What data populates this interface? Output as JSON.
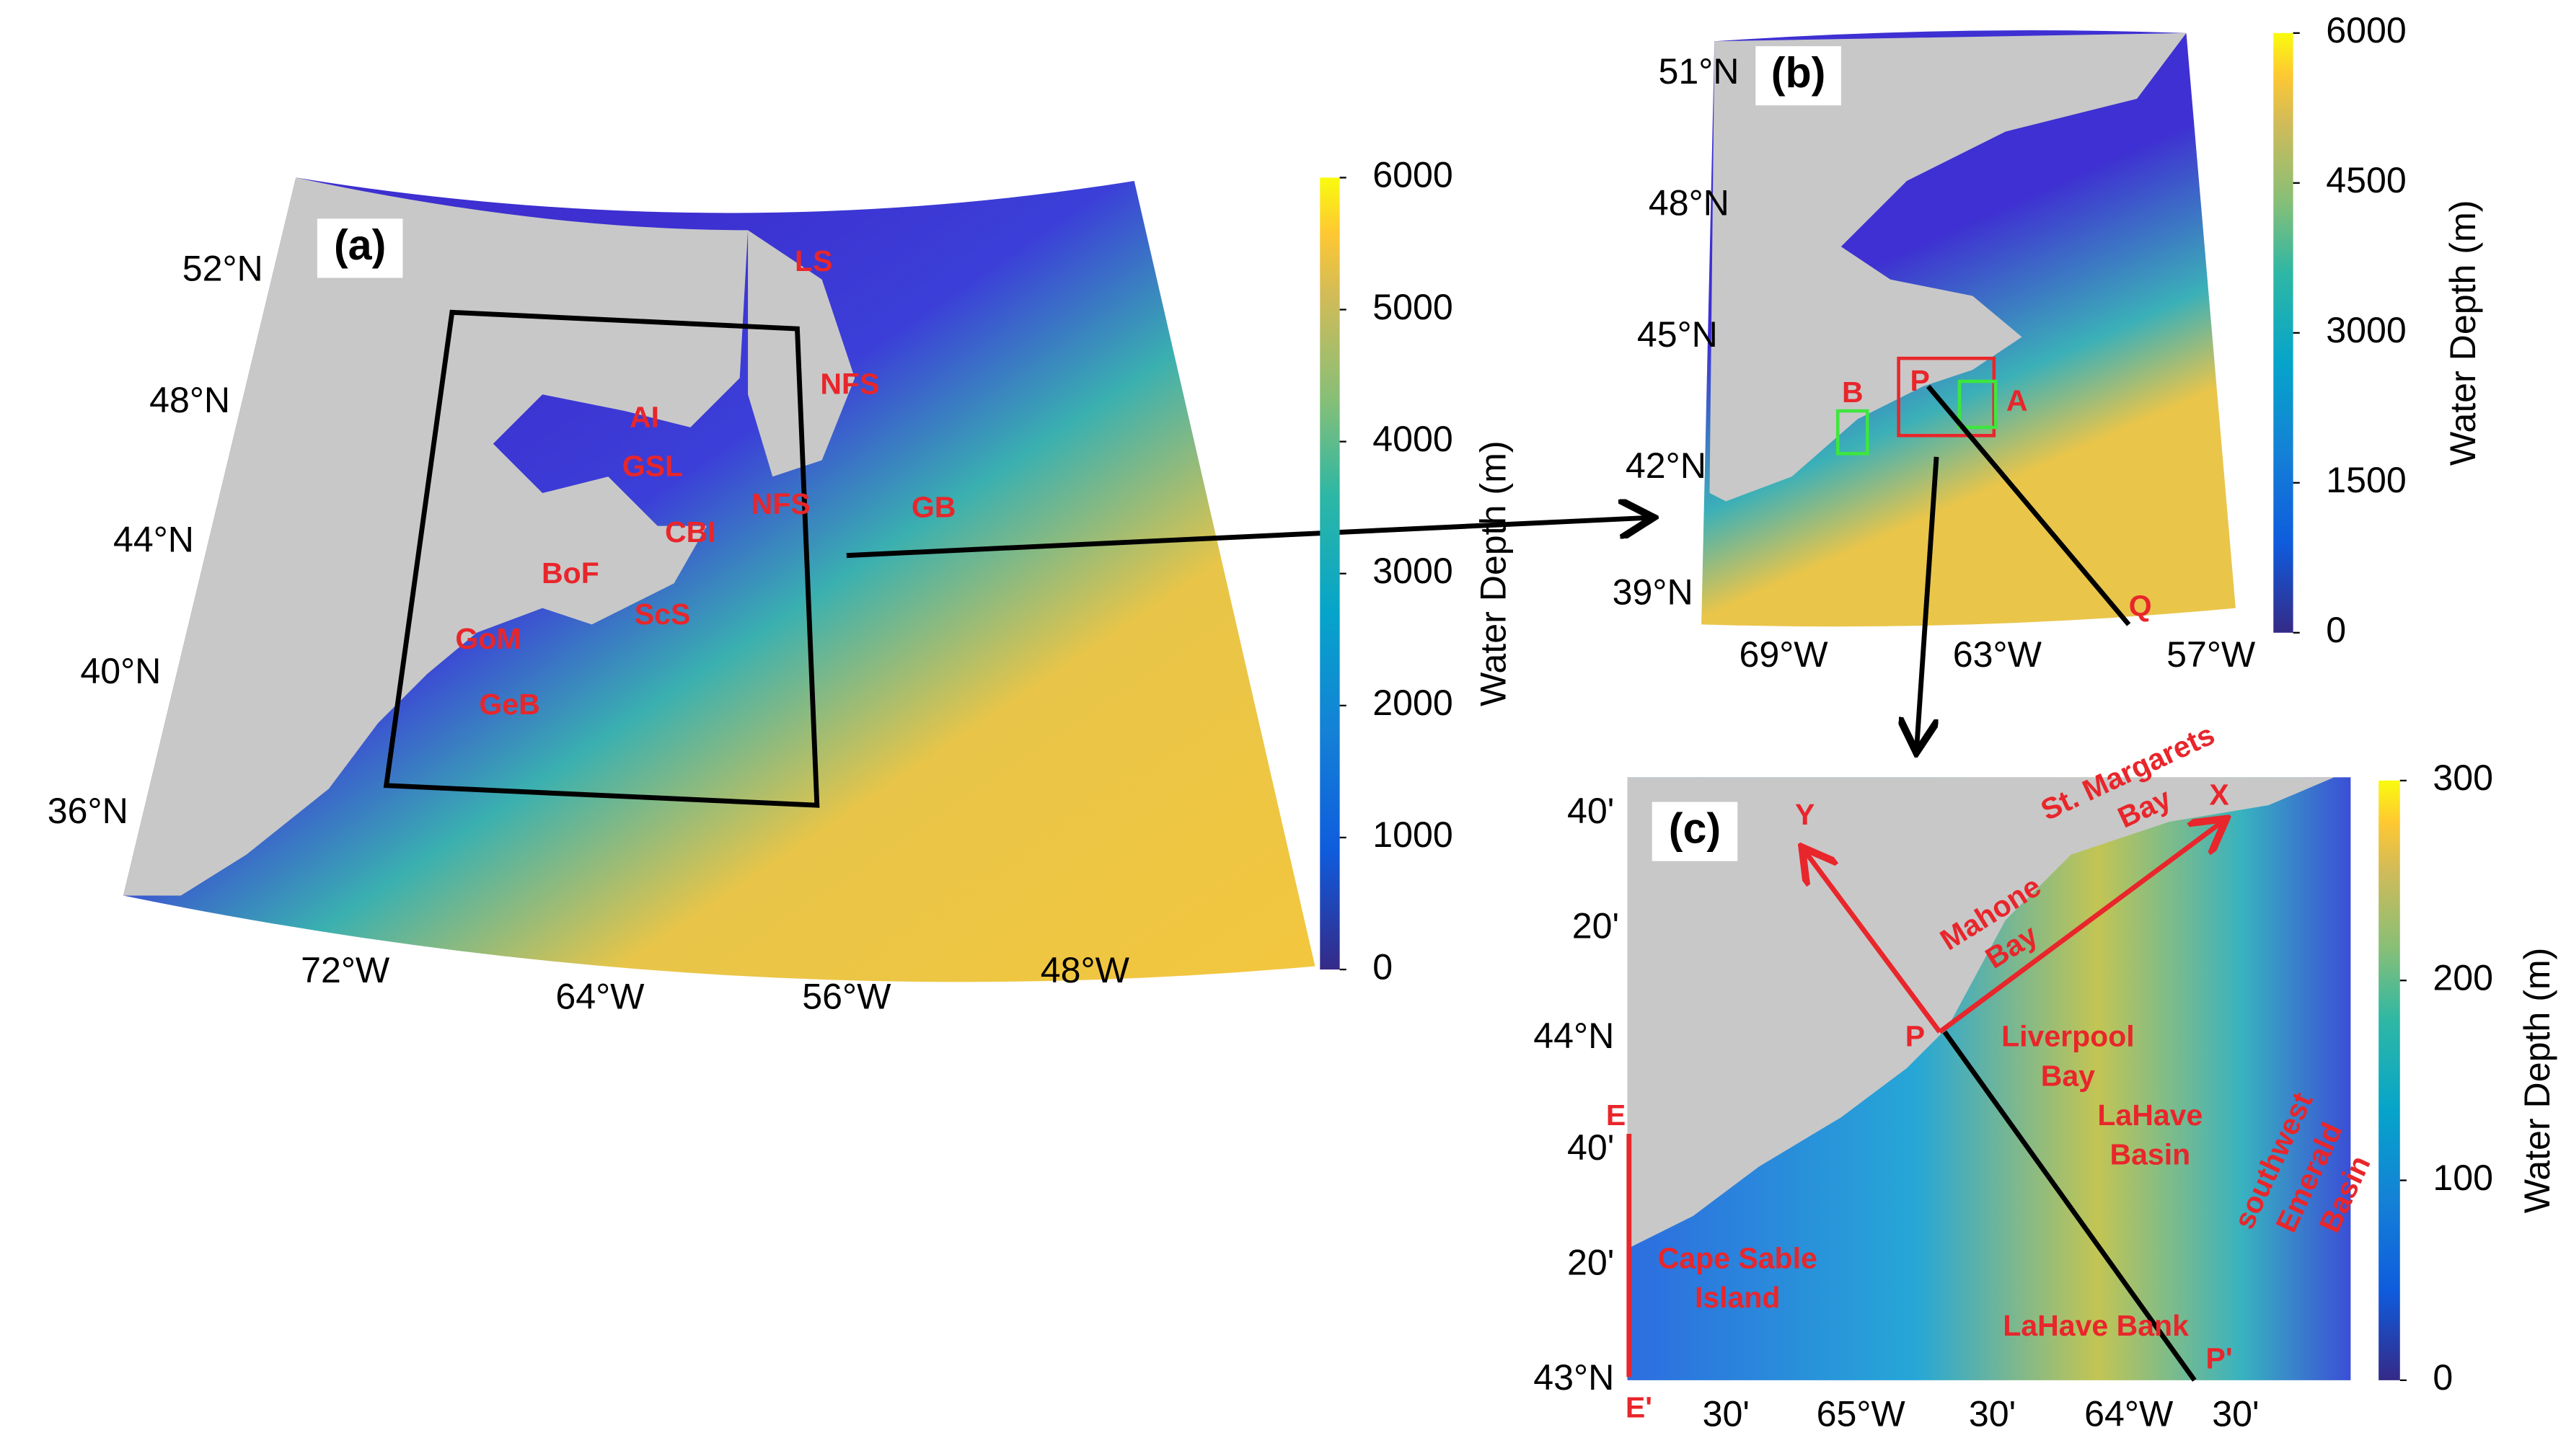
{
  "panel_a": {
    "label": "(a)",
    "lat_labels": [
      "52°N",
      "48°N",
      "44°N",
      "40°N",
      "36°N"
    ],
    "lon_labels": [
      "72°W",
      "64°W",
      "56°W",
      "48°W"
    ],
    "regions": [
      "LS",
      "NFS",
      "AI",
      "GSL",
      "NFS",
      "CBI",
      "GB",
      "BoF",
      "GoM",
      "ScS",
      "GeB"
    ]
  },
  "colorbar_a": {
    "label": "Water Depth (m)",
    "ticks": [
      0,
      1000,
      2000,
      3000,
      4000,
      5000,
      6000
    ]
  },
  "panel_b": {
    "label": "(b)",
    "lat_labels": [
      "51°N",
      "48°N",
      "45°N",
      "42°N",
      "39°N"
    ],
    "lon_labels": [
      "69°W",
      "63°W",
      "57°W"
    ],
    "points": [
      "P",
      "Q",
      "A",
      "B"
    ]
  },
  "colorbar_b": {
    "label": "Water Depth (m)",
    "ticks": [
      0,
      1500,
      3000,
      4500,
      6000
    ]
  },
  "panel_c": {
    "label": "(c)",
    "lat_labels": [
      "40'",
      "20'",
      "44°N",
      "40'",
      "20'",
      "43°N"
    ],
    "lon_labels": [
      "30'",
      "65°W",
      "30'",
      "64°W",
      "30'"
    ],
    "points": [
      "P",
      "P'",
      "E",
      "E'",
      "X",
      "Y"
    ],
    "places": [
      [
        "St. Margarets",
        "Bay"
      ],
      [
        "Mahone",
        "Bay"
      ],
      [
        "Liverpool",
        "Bay"
      ],
      [
        "LaHave",
        "Basin"
      ],
      [
        "southwest",
        "Emerald",
        "Basin"
      ],
      [
        "Cape Sable",
        "Island"
      ],
      [
        "LaHave Bank"
      ]
    ]
  },
  "colorbar_c": {
    "label": "Water Depth (m)",
    "ticks": [
      0,
      100,
      200,
      300
    ]
  }
}
